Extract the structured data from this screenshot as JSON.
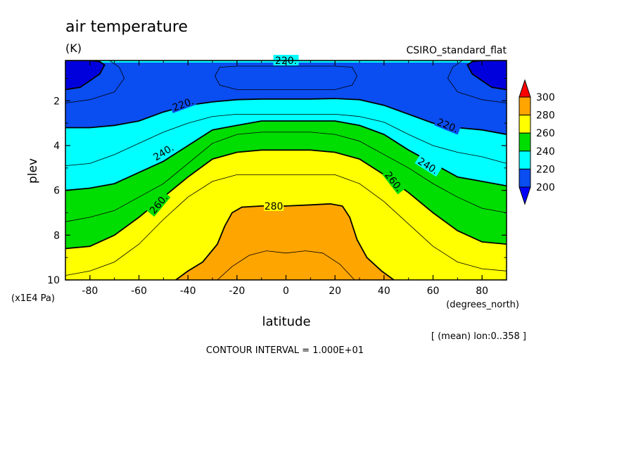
{
  "chart_data": {
    "type": "heatmap",
    "subtype": "filled-contour",
    "title": "air temperature",
    "units": "(K)",
    "dataset": "CSIRO_standard_flat",
    "xlabel": "latitude",
    "xunits": "(degrees_north)",
    "ylabel": "plev",
    "yunits": "(x1E4 Pa)",
    "note": "[ (mean) lon:0..358 ]",
    "contour_interval_text": "CONTOUR INTERVAL = 1.000E+01",
    "xlim": [
      -90,
      90
    ],
    "ylim": [
      10,
      0.2
    ],
    "x_ticks": [
      -80,
      -60,
      -40,
      -20,
      0,
      20,
      40,
      60,
      80
    ],
    "y_ticks": [
      2,
      4,
      6,
      8,
      10
    ],
    "colorbar": {
      "levels": [
        200,
        220,
        240,
        260,
        280,
        300
      ],
      "labels": [
        "200",
        "220",
        "240",
        "260",
        "280",
        "300"
      ],
      "colors": [
        "#0a4df0",
        "#00ffff",
        "#00dd00",
        "#ffff00",
        "#ffa500"
      ],
      "under_color": "#0000ff",
      "over_color": "#ff0000",
      "under_deep_color": "#0000dd"
    },
    "contour_labels": [
      "220.",
      "220.",
      "220.",
      "240.",
      "240.",
      "260.",
      "260.",
      "280"
    ],
    "isolines": [
      {
        "level": 200,
        "x": [
          -90,
          -84,
          -80,
          -76,
          -74,
          -76,
          -80,
          -84,
          -90
        ],
        "y": [
          1.5,
          1.4,
          1.1,
          0.8,
          0.4,
          0.25,
          0.2,
          0.2,
          0.2
        ],
        "closed": false
      },
      {
        "level": 200,
        "x": [
          90,
          84,
          80,
          76,
          74,
          76,
          80,
          84,
          90
        ],
        "y": [
          1.5,
          1.4,
          1.1,
          0.8,
          0.4,
          0.25,
          0.2,
          0.2,
          0.2
        ],
        "closed": false
      },
      {
        "level": 210,
        "x": [
          -90,
          -80,
          -70,
          -66,
          -68,
          -72
        ],
        "y": [
          2.1,
          1.95,
          1.6,
          1.0,
          0.5,
          0.2
        ]
      },
      {
        "level": 210,
        "x": [
          90,
          80,
          70,
          66,
          68,
          72
        ],
        "y": [
          2.1,
          1.95,
          1.6,
          1.0,
          0.5,
          0.2
        ]
      },
      {
        "level": 210,
        "x": [
          -27,
          -20,
          -10,
          0,
          10,
          20,
          27,
          29,
          27,
          20,
          10,
          0,
          -10,
          -20,
          -27,
          -29,
          -27
        ],
        "y": [
          0.5,
          0.45,
          0.45,
          0.45,
          0.45,
          0.45,
          0.5,
          0.9,
          1.3,
          1.5,
          1.5,
          1.5,
          1.5,
          1.5,
          1.3,
          0.9,
          0.5
        ]
      },
      {
        "level": 220,
        "x": [
          -90,
          -80,
          -70,
          -60,
          -50,
          -40,
          -30,
          -20,
          -10,
          0,
          10,
          20,
          30,
          40,
          50,
          60,
          70,
          80,
          90
        ],
        "y": [
          3.2,
          3.2,
          3.1,
          2.9,
          2.5,
          2.2,
          2.05,
          1.95,
          1.92,
          1.92,
          1.92,
          1.9,
          1.95,
          2.2,
          2.6,
          3.0,
          3.2,
          3.3,
          3.5
        ]
      },
      {
        "level": 225,
        "x": [
          -90,
          -80,
          -60,
          -40,
          -20,
          0,
          20,
          40,
          60,
          80,
          90
        ],
        "y": [
          0.2,
          0.2,
          0.2,
          0.2,
          0.2,
          0.2,
          0.2,
          0.2,
          0.2,
          0.2,
          0.2
        ]
      },
      {
        "level": 230,
        "x": [
          -90,
          -80,
          -70,
          -60,
          -50,
          -40,
          -30,
          -20,
          -10,
          0,
          10,
          20,
          30,
          40,
          50,
          60,
          70,
          80,
          90
        ],
        "y": [
          4.9,
          4.8,
          4.4,
          3.9,
          3.4,
          3.0,
          2.7,
          2.6,
          2.6,
          2.6,
          2.6,
          2.6,
          2.7,
          2.95,
          3.5,
          4.0,
          4.3,
          4.5,
          4.8
        ]
      },
      {
        "level": 240,
        "x": [
          -90,
          -80,
          -70,
          -60,
          -50,
          -40,
          -30,
          -20,
          -10,
          0,
          10,
          20,
          30,
          40,
          50,
          60,
          70,
          80,
          90
        ],
        "y": [
          6.0,
          5.9,
          5.7,
          5.2,
          4.7,
          4.0,
          3.3,
          3.1,
          2.9,
          2.9,
          2.9,
          2.9,
          3.1,
          3.5,
          4.2,
          4.8,
          5.4,
          5.6,
          5.8
        ]
      },
      {
        "level": 250,
        "x": [
          -90,
          -80,
          -70,
          -60,
          -50,
          -40,
          -30,
          -20,
          -10,
          0,
          10,
          20,
          30,
          40,
          50,
          60,
          70,
          80,
          90
        ],
        "y": [
          7.4,
          7.2,
          6.9,
          6.3,
          5.7,
          4.8,
          3.9,
          3.5,
          3.4,
          3.4,
          3.4,
          3.5,
          3.8,
          4.4,
          5.0,
          5.7,
          6.3,
          6.8,
          7.0
        ]
      },
      {
        "level": 260,
        "x": [
          -90,
          -80,
          -70,
          -60,
          -50,
          -40,
          -30,
          -20,
          -10,
          0,
          10,
          20,
          30,
          40,
          50,
          60,
          70,
          80,
          90
        ],
        "y": [
          8.6,
          8.5,
          8.0,
          7.2,
          6.3,
          5.4,
          4.6,
          4.3,
          4.2,
          4.2,
          4.2,
          4.3,
          4.6,
          5.3,
          6.1,
          7.0,
          7.8,
          8.3,
          8.4
        ]
      },
      {
        "level": 270,
        "x": [
          -90,
          -80,
          -70,
          -60,
          -50,
          -40,
          -30,
          -20,
          -10,
          0,
          10,
          20,
          30,
          40,
          50,
          60,
          70,
          80,
          90
        ],
        "y": [
          9.8,
          9.6,
          9.2,
          8.4,
          7.3,
          6.3,
          5.6,
          5.3,
          5.3,
          5.3,
          5.3,
          5.3,
          5.7,
          6.5,
          7.5,
          8.5,
          9.2,
          9.5,
          9.6
        ]
      },
      {
        "level": 280,
        "x": [
          -45,
          -40,
          -34,
          -28,
          -25,
          -22,
          -18,
          -10,
          0,
          10,
          18,
          23,
          26,
          29,
          33,
          39,
          44
        ],
        "y": [
          10.0,
          9.6,
          9.2,
          8.4,
          7.6,
          7.0,
          6.75,
          6.7,
          6.7,
          6.65,
          6.6,
          6.7,
          7.2,
          8.2,
          9.0,
          9.6,
          10.0
        ]
      },
      {
        "level": 290,
        "x": [
          -28,
          -22,
          -15,
          -8,
          0,
          8,
          15,
          22,
          28
        ],
        "y": [
          10.0,
          9.4,
          8.9,
          8.7,
          8.8,
          8.7,
          8.8,
          9.3,
          10.0
        ]
      }
    ]
  }
}
